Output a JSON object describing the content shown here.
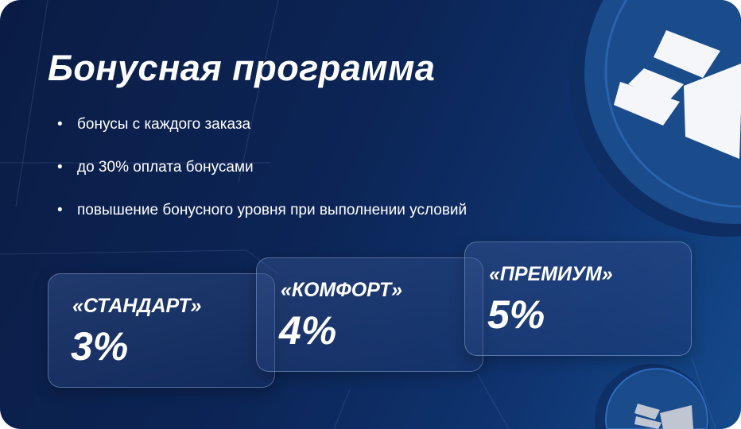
{
  "title": "Бонусная программа",
  "bullets": [
    "бонусы с каждого заказа",
    "до 30% оплата бонусами",
    "повышение бонусного уровня при выполнении условий"
  ],
  "levels": [
    {
      "name": "«СТАНДАРТ»",
      "percent": "3%"
    },
    {
      "name": "«КОМФОРТ»",
      "percent": "4%"
    },
    {
      "name": "«ПРЕМИУМ»",
      "percent": "5%"
    }
  ],
  "colors": {
    "background": "#0c2556",
    "coin": "#1a4b8a",
    "text": "#ffffff"
  },
  "icons": [
    "coin-logo-icon",
    "small-coin-logo-icon"
  ]
}
